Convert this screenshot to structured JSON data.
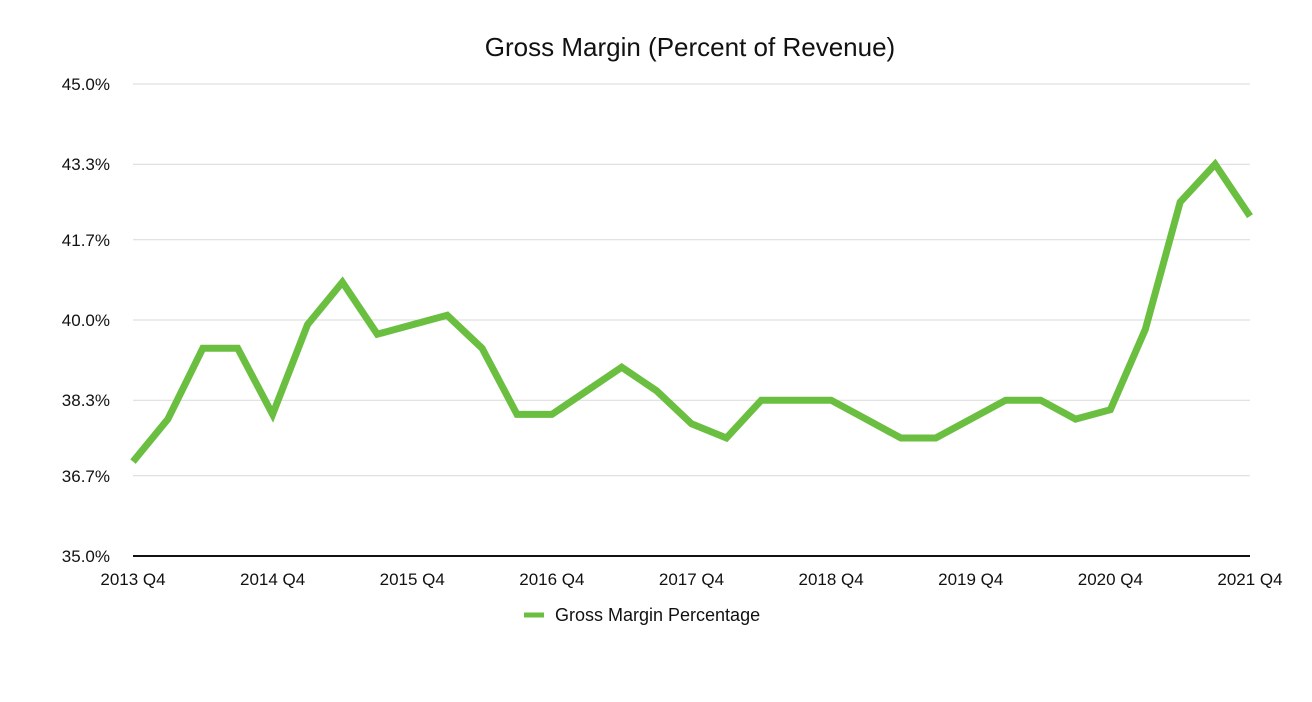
{
  "chart_data": {
    "type": "line",
    "title": "Gross Margin (Percent of Revenue)",
    "xlabel": "",
    "ylabel": "",
    "x": [
      "2013 Q4",
      "2014 Q1",
      "2014 Q2",
      "2014 Q3",
      "2014 Q4",
      "2015 Q1",
      "2015 Q2",
      "2015 Q3",
      "2015 Q4",
      "2016 Q1",
      "2016 Q2",
      "2016 Q3",
      "2016 Q4",
      "2017 Q1",
      "2017 Q2",
      "2017 Q3",
      "2017 Q4",
      "2018 Q1",
      "2018 Q2",
      "2018 Q3",
      "2018 Q4",
      "2019 Q1",
      "2019 Q2",
      "2019 Q3",
      "2019 Q4",
      "2020 Q1",
      "2020 Q2",
      "2020 Q3",
      "2020 Q4",
      "2021 Q1",
      "2021 Q2",
      "2021 Q3",
      "2021 Q4"
    ],
    "x_tick_labels": [
      "2013 Q4",
      "2014 Q4",
      "2015 Q4",
      "2016 Q4",
      "2017 Q4",
      "2018 Q4",
      "2019 Q4",
      "2020 Q4",
      "2021 Q4"
    ],
    "series": [
      {
        "name": "Gross Margin Percentage",
        "color": "#6abf40",
        "values": [
          37.0,
          37.9,
          39.4,
          39.4,
          38.0,
          39.9,
          40.8,
          39.7,
          39.9,
          40.1,
          39.4,
          38.0,
          38.0,
          38.5,
          39.0,
          38.5,
          37.8,
          37.5,
          38.3,
          38.3,
          38.3,
          37.9,
          37.5,
          37.5,
          37.9,
          38.3,
          38.3,
          37.9,
          38.1,
          39.8,
          42.5,
          43.3,
          42.2
        ]
      }
    ],
    "ylim": [
      35.0,
      45.0
    ],
    "y_ticks": [
      35.0,
      36.7,
      38.3,
      40.0,
      41.7,
      43.3,
      45.0
    ],
    "y_tick_labels": [
      "35.0%",
      "36.7%",
      "38.3%",
      "40.0%",
      "41.7%",
      "43.3%",
      "45.0%"
    ],
    "grid": true,
    "legend_position": "bottom-center"
  }
}
